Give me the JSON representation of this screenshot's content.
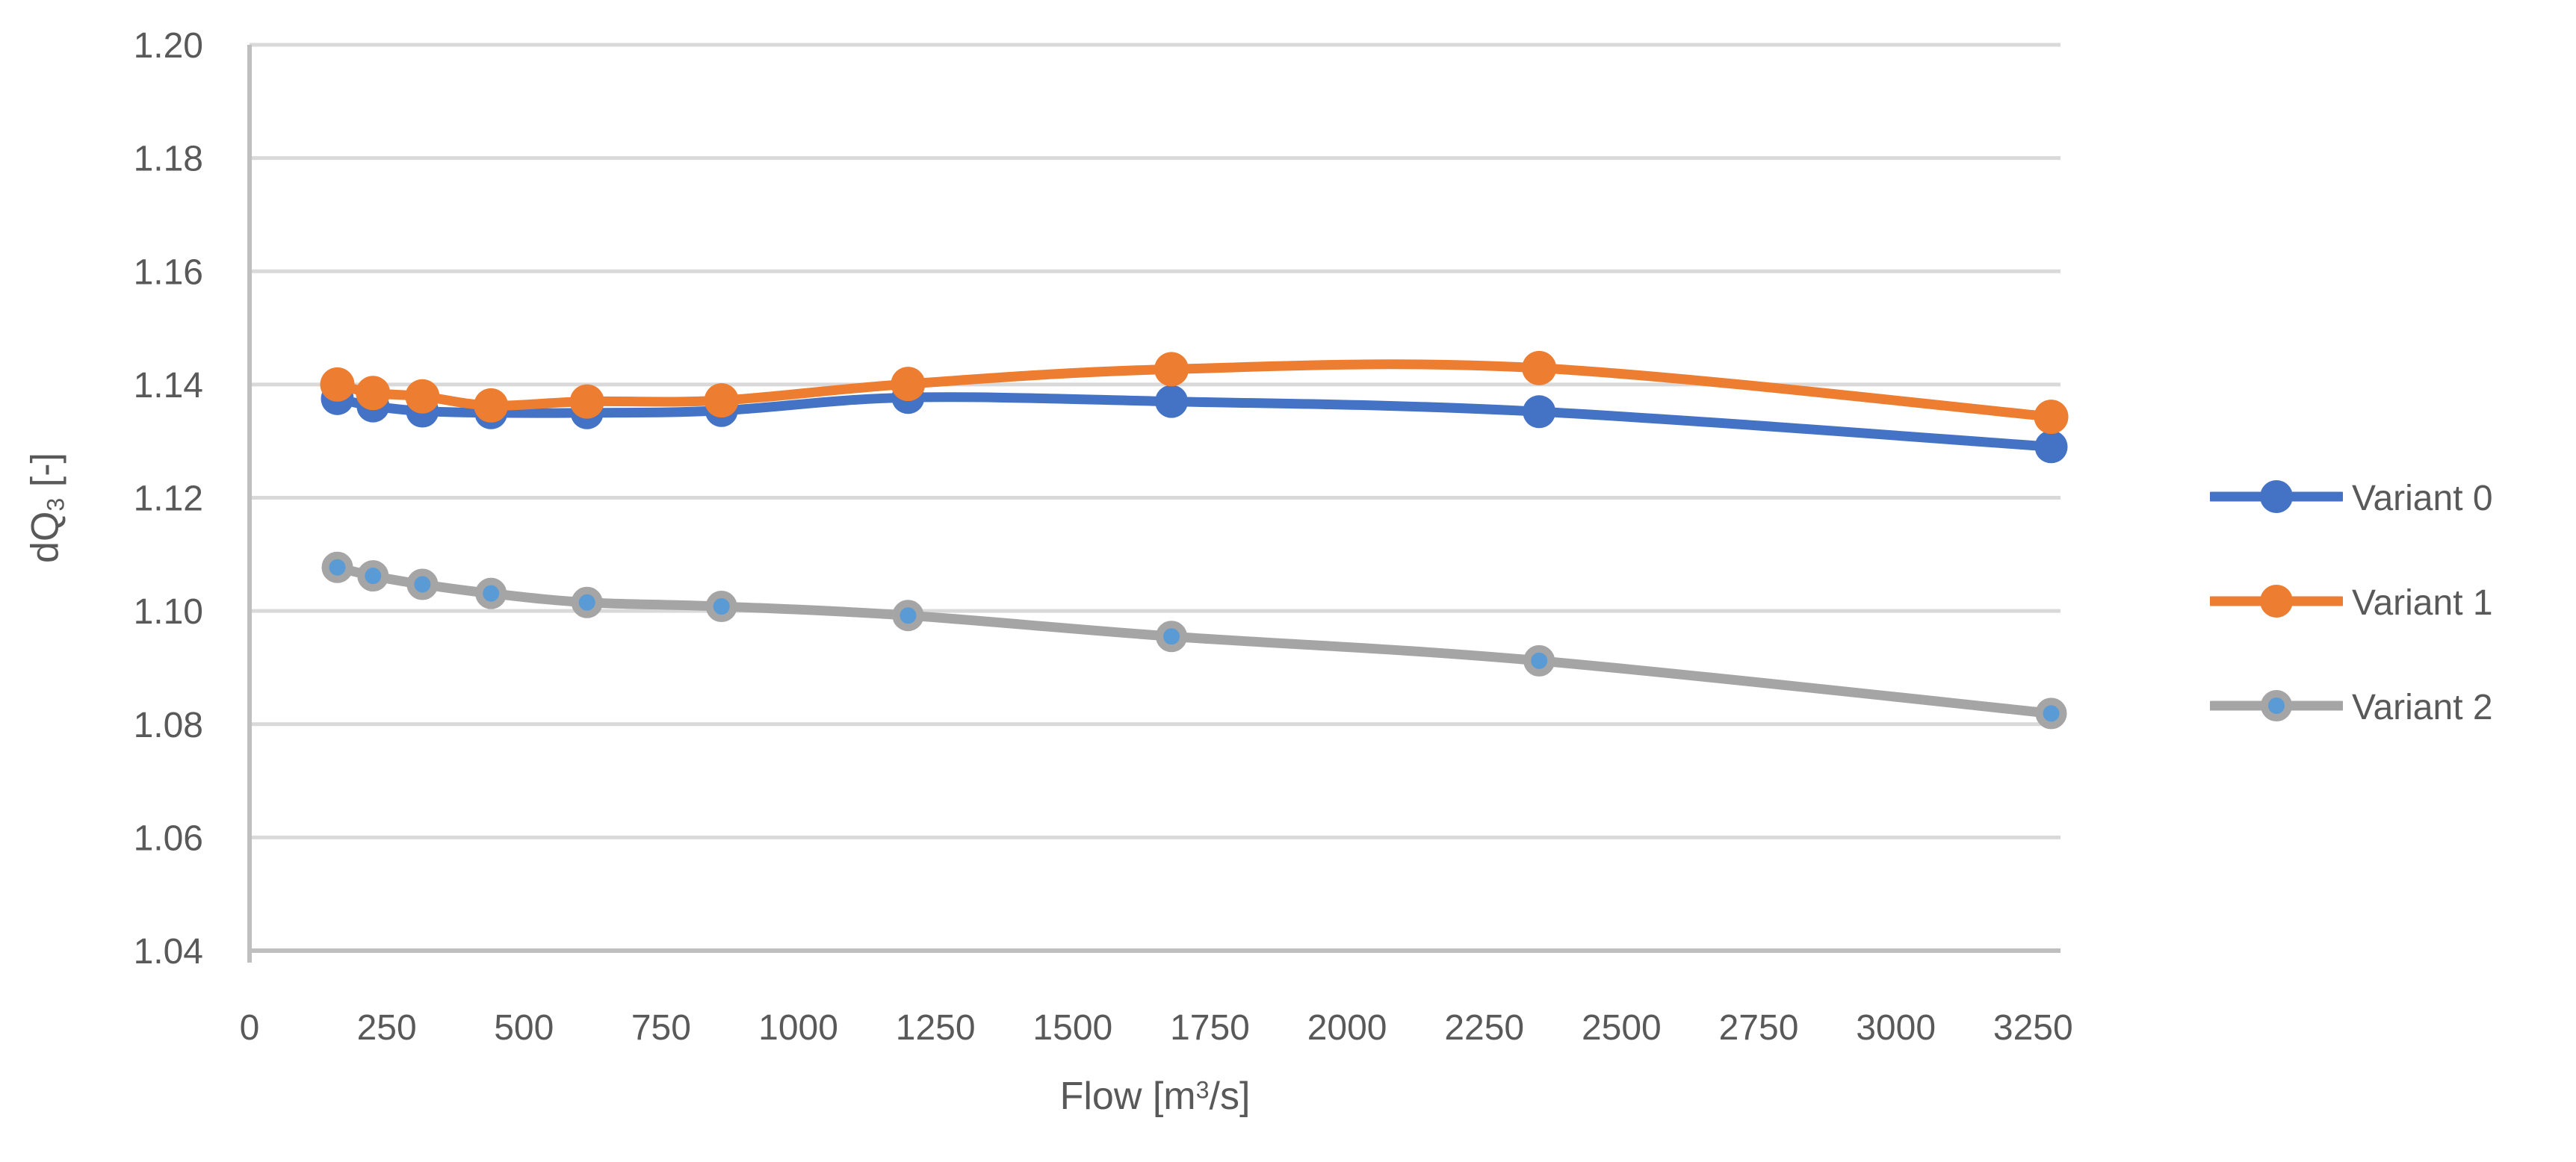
{
  "chart_data": {
    "type": "line",
    "title": "",
    "xlabel_parts": {
      "main": "Flow  [m",
      "sup": "3",
      "suffix": "/s]"
    },
    "ylabel_parts": {
      "main": "dQ",
      "sub": "3",
      "suffix": " [-]"
    },
    "x_axis": {
      "min": 0,
      "max": 3300,
      "tick_interval": 250,
      "ticks": [
        0,
        250,
        500,
        750,
        1000,
        1250,
        1500,
        1750,
        2000,
        2250,
        2500,
        2750,
        3000,
        3250
      ]
    },
    "y_axis": {
      "min": 1.04,
      "max": 1.2,
      "tick_interval": 0.02,
      "ticks": [
        "1.04",
        "1.06",
        "1.08",
        "1.10",
        "1.12",
        "1.14",
        "1.16",
        "1.18",
        "1.20"
      ]
    },
    "grid": "horizontal",
    "legend_position": "right",
    "x": [
      160,
      225,
      315,
      440,
      615,
      860,
      1200,
      1680,
      2350,
      3283
    ],
    "series": [
      {
        "name": "Variant 0",
        "color": "#4472C4",
        "marker_fill": "#4472C4",
        "marker_stroke": "#4472C4",
        "values": [
          1.1375,
          1.1362,
          1.1353,
          1.135,
          1.135,
          1.1354,
          1.1377,
          1.137,
          1.1352,
          1.129
        ]
      },
      {
        "name": "Variant 1",
        "color": "#ED7D31",
        "marker_fill": "#ED7D31",
        "marker_stroke": "#ED7D31",
        "values": [
          1.14,
          1.1385,
          1.1379,
          1.1363,
          1.137,
          1.1372,
          1.1401,
          1.1427,
          1.1429,
          1.1343
        ]
      },
      {
        "name": "Variant 2",
        "color": "#A5A5A5",
        "marker_fill": "#5B9BD5",
        "marker_stroke": "#A5A5A5",
        "values": [
          1.1077,
          1.1062,
          1.1047,
          1.1031,
          1.1015,
          1.1008,
          1.0992,
          1.0955,
          1.0912,
          1.0819
        ]
      }
    ],
    "colors": {
      "gridline": "#D9D9D9",
      "axis_line": "#BFBFBF",
      "tick_text": "#595959"
    }
  }
}
